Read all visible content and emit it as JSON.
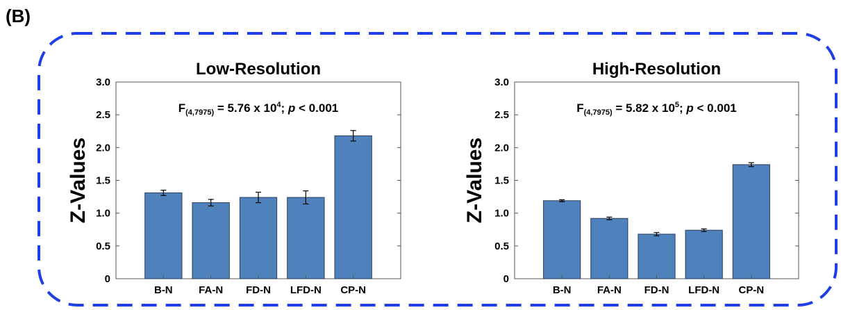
{
  "panel_label": "(B)",
  "chart_data": [
    {
      "type": "bar",
      "title": "Low-Resolution",
      "ylabel": "Z-Values",
      "xlabel": "",
      "ylim": [
        0,
        3.0
      ],
      "yticks": [
        "0",
        "0.5",
        "1.0",
        "1.5",
        "2.0",
        "2.5",
        "3.0"
      ],
      "categories": [
        "B-N",
        "FA-N",
        "FD-N",
        "LFD-N",
        "CP-N"
      ],
      "values": [
        1.31,
        1.16,
        1.24,
        1.24,
        2.18
      ],
      "errors": [
        0.04,
        0.05,
        0.08,
        0.1,
        0.08
      ],
      "bar_color": "#4f81bd",
      "annotation": {
        "main": "F",
        "sub": "(4,7975)",
        "mid": " = 5.76 x 10",
        "sup": "4",
        "tail": "; ",
        "italic": "p",
        "end": " < 0.001"
      }
    },
    {
      "type": "bar",
      "title": "High-Resolution",
      "ylabel": "Z-Values",
      "xlabel": "",
      "ylim": [
        0,
        3.0
      ],
      "yticks": [
        "0",
        "0.5",
        "1.0",
        "1.5",
        "2.0",
        "2.5",
        "3.0"
      ],
      "categories": [
        "B-N",
        "FA-N",
        "FD-N",
        "LFD-N",
        "CP-N"
      ],
      "values": [
        1.19,
        0.92,
        0.68,
        0.74,
        1.74
      ],
      "errors": [
        0.015,
        0.02,
        0.025,
        0.02,
        0.03
      ],
      "bar_color": "#4f81bd",
      "annotation": {
        "main": "F",
        "sub": "(4,7975)",
        "mid": " = 5.82 x 10",
        "sup": "5",
        "tail": "; ",
        "italic": "p",
        "end": " < 0.001"
      }
    }
  ]
}
